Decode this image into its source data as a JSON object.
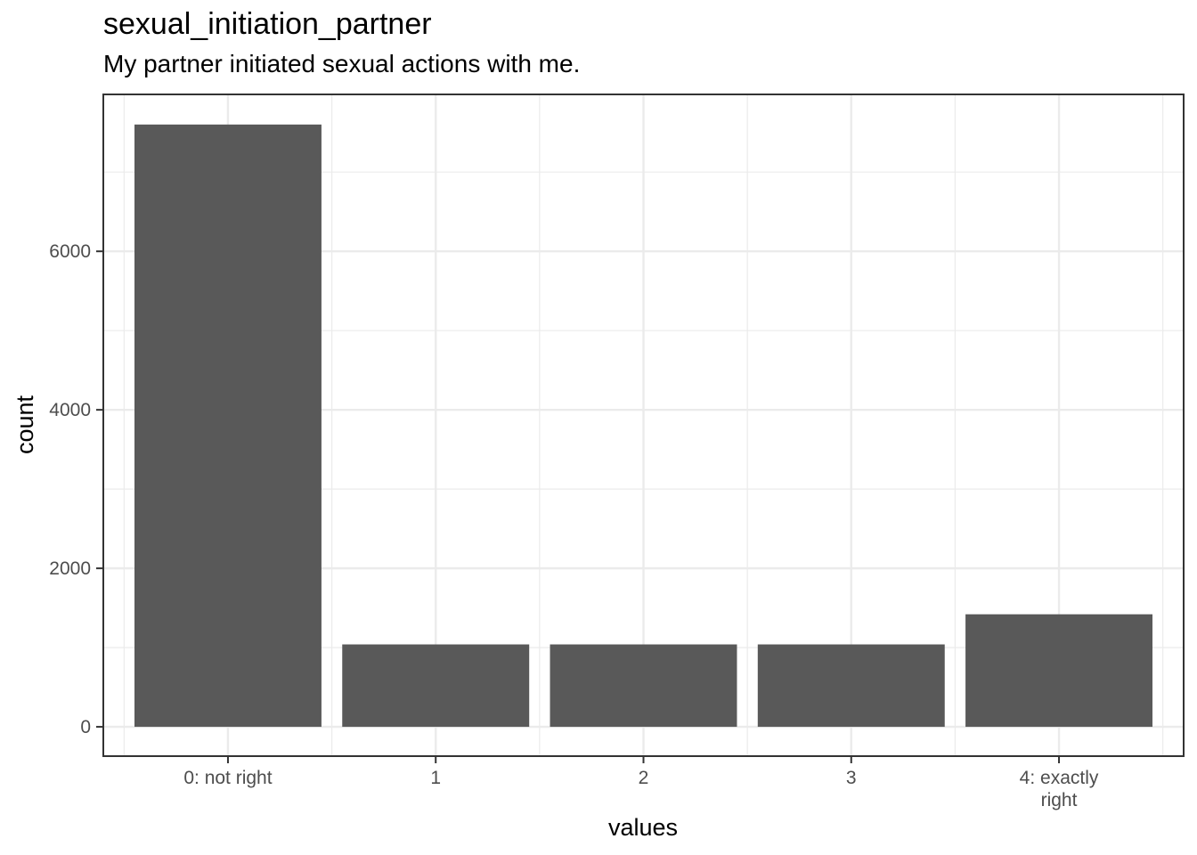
{
  "header": {
    "title": "sexual_initiation_partner",
    "subtitle": "My partner initiated sexual actions with me."
  },
  "colors": {
    "bar": "#595959",
    "grid": "#ebebeb",
    "panel_border": "#333333",
    "tick_text": "#4d4d4d"
  },
  "chart_data": {
    "type": "bar",
    "title": "sexual_initiation_partner",
    "subtitle": "My partner initiated sexual actions with me.",
    "xlabel": "values",
    "ylabel": "count",
    "categories": [
      "0: not right",
      "1",
      "2",
      "3",
      "4: exactly right"
    ],
    "category_label_lines": [
      [
        "0: not right"
      ],
      [
        "1"
      ],
      [
        "2"
      ],
      [
        "3"
      ],
      [
        "4: exactly",
        "right"
      ]
    ],
    "values": [
      7600,
      1040,
      1040,
      1040,
      1420
    ],
    "ylim": [
      -370,
      7980
    ],
    "yticks": [
      0,
      2000,
      4000,
      6000
    ],
    "ytick_labels": [
      "0",
      "2000",
      "4000",
      "6000"
    ],
    "grid": true,
    "legend": "none"
  }
}
